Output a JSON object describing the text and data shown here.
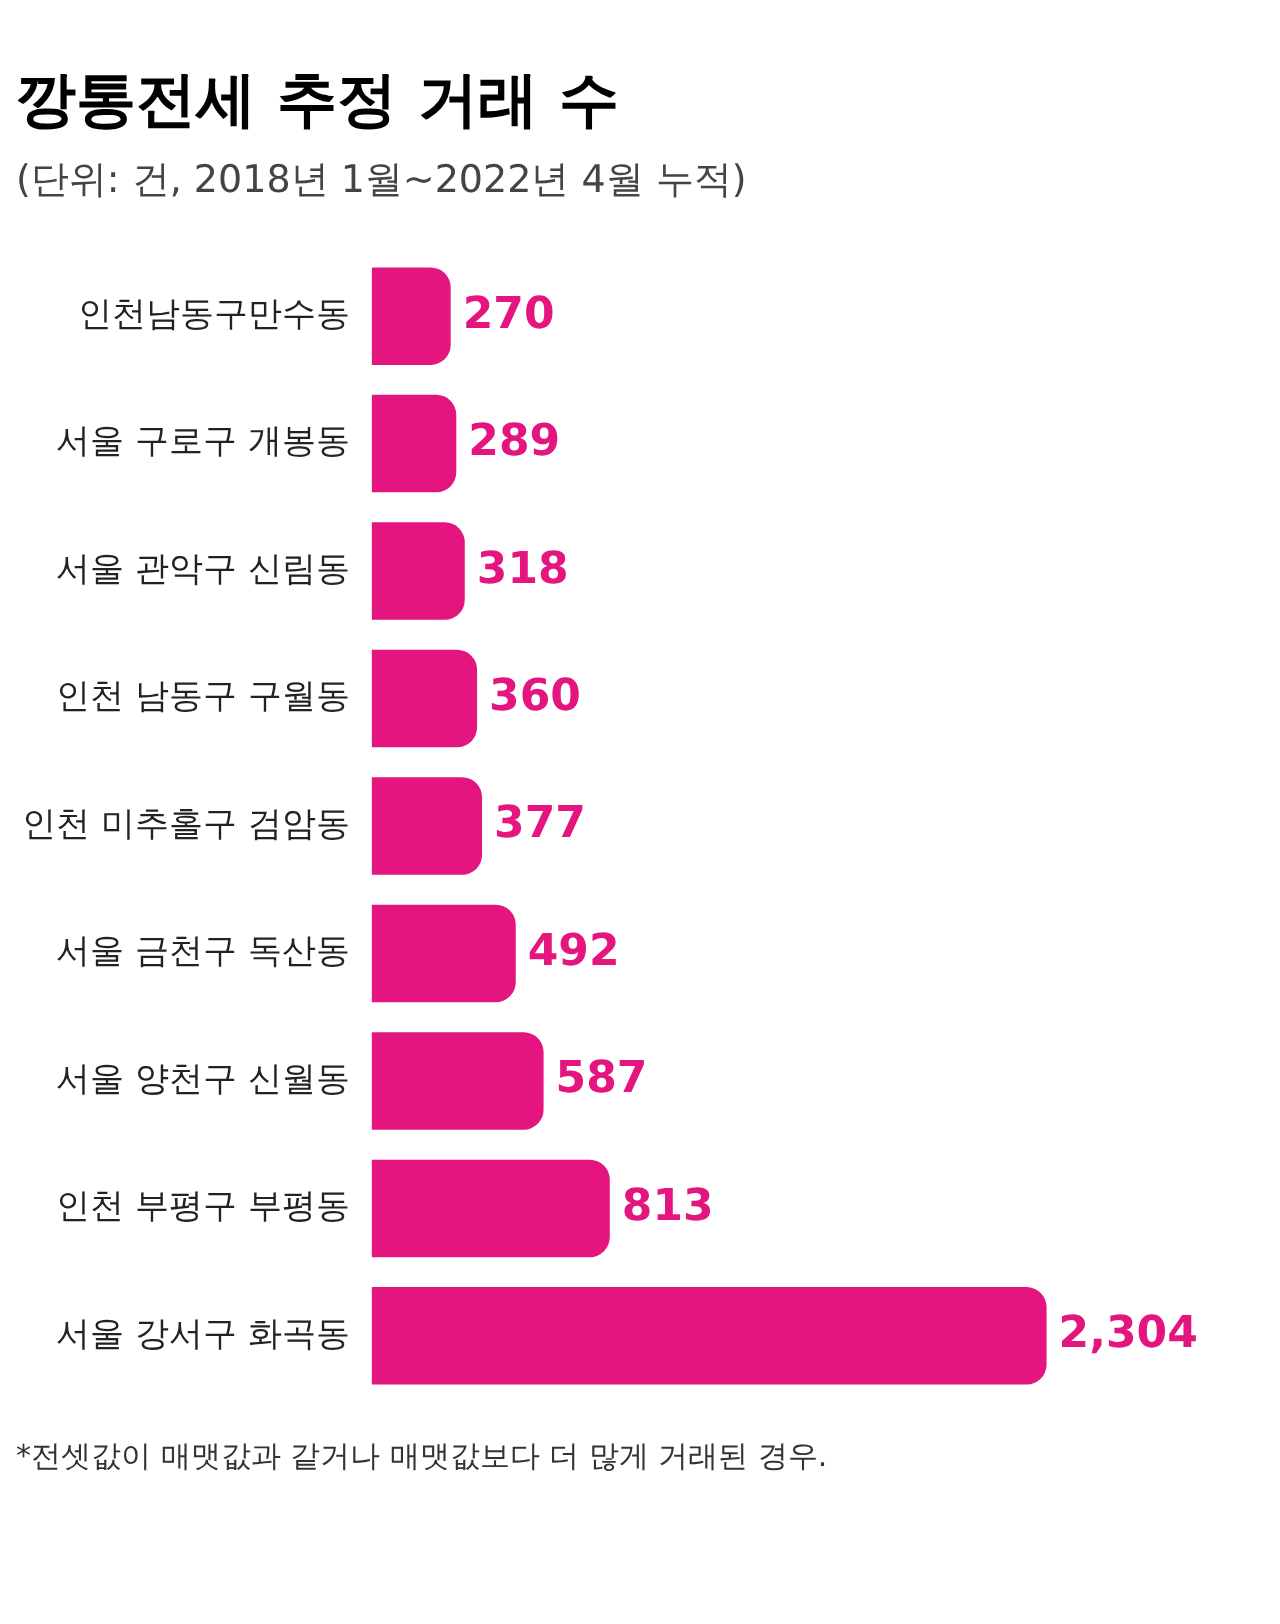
{
  "chart_data": {
    "type": "bar",
    "orientation": "horizontal",
    "title": "깡통전세 추정 거래 수",
    "subtitle": "(단위: 건, 2018년 1월~2022년 4월 누적)",
    "categories": [
      "인천남동구만수동",
      "서울 구로구 개봉동",
      "서울 관악구 신림동",
      "인천 남동구 구월동",
      "인천 미추홀구 검암동",
      "서울 금천구 독산동",
      "서울 양천구 신월동",
      "인천 부평구 부평동",
      "서울 강서구 화곡동"
    ],
    "values": [
      270,
      289,
      318,
      360,
      377,
      492,
      587,
      813,
      2304
    ],
    "color": "#e4157f",
    "value_labels": [
      "270",
      "289",
      "318",
      "360",
      "377",
      "492",
      "587",
      "813",
      "2,304"
    ],
    "grid": false,
    "legend": false,
    "annotations": [
      "*전셋값이 매맷값과 같거나 매맷값보다 더 많게 거래된 경우."
    ]
  }
}
